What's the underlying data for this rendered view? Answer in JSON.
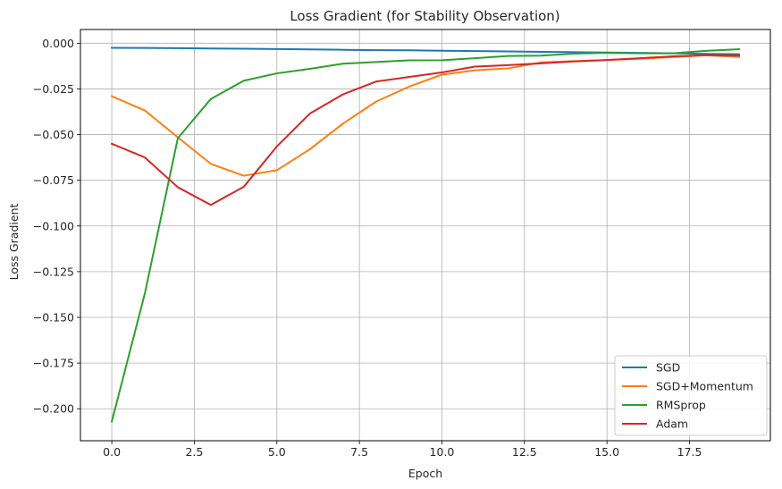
{
  "chart_data": {
    "type": "line",
    "title": "Loss Gradient (for Stability Observation)",
    "xlabel": "Epoch",
    "ylabel": "Loss Gradient",
    "xlim": [
      -0.95,
      19.95
    ],
    "ylim": [
      -0.2175,
      0.0075
    ],
    "xticks": [
      0.0,
      2.5,
      5.0,
      7.5,
      10.0,
      12.5,
      15.0,
      17.5
    ],
    "xtick_labels": [
      "0.0",
      "2.5",
      "5.0",
      "7.5",
      "10.0",
      "12.5",
      "15.0",
      "17.5"
    ],
    "yticks": [
      0.0,
      -0.025,
      -0.05,
      -0.075,
      -0.1,
      -0.125,
      -0.15,
      -0.175,
      -0.2
    ],
    "ytick_labels": [
      "0.000",
      "−0.025",
      "−0.050",
      "−0.075",
      "−0.100",
      "−0.125",
      "−0.150",
      "−0.175",
      "−0.200"
    ],
    "grid": true,
    "legend_position": "bottom-right",
    "x": [
      0,
      1,
      2,
      3,
      4,
      5,
      6,
      7,
      8,
      9,
      10,
      11,
      12,
      13,
      14,
      15,
      16,
      17,
      18,
      19
    ],
    "series": [
      {
        "name": "SGD",
        "color": "#1f77b4",
        "values": [
          -0.0025,
          -0.0026,
          -0.0027,
          -0.0029,
          -0.003,
          -0.0032,
          -0.0034,
          -0.0036,
          -0.0038,
          -0.0039,
          -0.0041,
          -0.0043,
          -0.0045,
          -0.0047,
          -0.0049,
          -0.0051,
          -0.0053,
          -0.0055,
          -0.0058,
          -0.006
        ]
      },
      {
        "name": "SGD+Momentum",
        "color": "#ff7f0e",
        "values": [
          -0.029,
          -0.0368,
          -0.0515,
          -0.066,
          -0.0725,
          -0.0695,
          -0.058,
          -0.044,
          -0.032,
          -0.0238,
          -0.0172,
          -0.0148,
          -0.0138,
          -0.0105,
          -0.0098,
          -0.0092,
          -0.0085,
          -0.0076,
          -0.0066,
          -0.0075
        ]
      },
      {
        "name": "RMSprop",
        "color": "#2ca02c",
        "values": [
          -0.207,
          -0.137,
          -0.052,
          -0.0305,
          -0.0205,
          -0.0165,
          -0.014,
          -0.0112,
          -0.0103,
          -0.0094,
          -0.0093,
          -0.0082,
          -0.007,
          -0.0068,
          -0.0057,
          -0.0053,
          -0.0055,
          -0.0055,
          -0.0042,
          -0.0033
        ]
      },
      {
        "name": "Adam",
        "color": "#d62728",
        "values": [
          -0.055,
          -0.0625,
          -0.0788,
          -0.0885,
          -0.0785,
          -0.0565,
          -0.0385,
          -0.028,
          -0.021,
          -0.0185,
          -0.016,
          -0.0128,
          -0.012,
          -0.011,
          -0.01,
          -0.0092,
          -0.0082,
          -0.0072,
          -0.0065,
          -0.0068
        ]
      }
    ]
  }
}
